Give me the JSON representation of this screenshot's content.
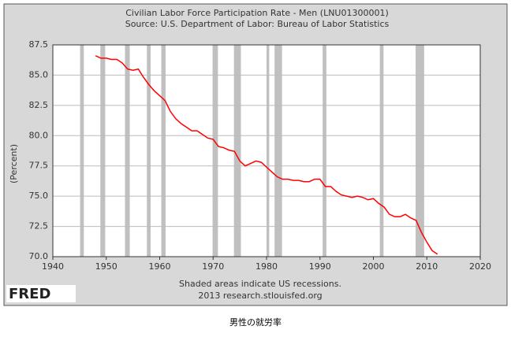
{
  "chart_data": {
    "type": "line",
    "title": "Civilian Labor Force Participation Rate - Men (LNU01300001)",
    "subtitle": "Source: U.S. Department of Labor: Bureau of Labor Statistics",
    "y_label": "(Percent)",
    "note": "Shaded areas indicate US recessions.",
    "source": "2013 research.stlouisfed.org",
    "logo": "FRED",
    "caption": "男性の就労率",
    "color": "#ff0000",
    "recession_color": "#c0c0c0",
    "grid": true,
    "x": [
      1948,
      1949,
      1950,
      1951,
      1952,
      1953,
      1954,
      1955,
      1956,
      1957,
      1958,
      1959,
      1960,
      1961,
      1962,
      1963,
      1964,
      1965,
      1966,
      1967,
      1968,
      1969,
      1970,
      1971,
      1972,
      1973,
      1974,
      1975,
      1976,
      1977,
      1978,
      1979,
      1980,
      1981,
      1982,
      1983,
      1984,
      1985,
      1986,
      1987,
      1988,
      1989,
      1990,
      1991,
      1992,
      1993,
      1994,
      1995,
      1996,
      1997,
      1998,
      1999,
      2000,
      2001,
      2002,
      2003,
      2004,
      2005,
      2006,
      2007,
      2008,
      2009,
      2010,
      2011,
      2012
    ],
    "values": [
      86.6,
      86.4,
      86.4,
      86.3,
      86.3,
      86.0,
      85.5,
      85.4,
      85.5,
      84.8,
      84.2,
      83.7,
      83.3,
      82.9,
      82.0,
      81.4,
      81.0,
      80.7,
      80.4,
      80.4,
      80.1,
      79.8,
      79.7,
      79.1,
      79.0,
      78.8,
      78.7,
      77.9,
      77.5,
      77.7,
      77.9,
      77.8,
      77.4,
      77.0,
      76.6,
      76.4,
      76.4,
      76.3,
      76.3,
      76.2,
      76.2,
      76.4,
      76.4,
      75.8,
      75.8,
      75.4,
      75.1,
      75.0,
      74.9,
      75.0,
      74.9,
      74.7,
      74.8,
      74.4,
      74.1,
      73.5,
      73.3,
      73.3,
      73.5,
      73.2,
      73.0,
      72.0,
      71.2,
      70.5,
      70.2
    ],
    "recessions": [
      [
        1945.1,
        1945.8
      ],
      [
        1948.9,
        1949.8
      ],
      [
        1953.5,
        1954.4
      ],
      [
        1957.6,
        1958.3
      ],
      [
        1960.3,
        1961.1
      ],
      [
        1969.9,
        1970.9
      ],
      [
        1973.9,
        1975.2
      ],
      [
        1980.0,
        1980.5
      ],
      [
        1981.5,
        1982.9
      ],
      [
        1990.5,
        1991.2
      ],
      [
        2001.2,
        2001.9
      ],
      [
        2007.9,
        2009.5
      ]
    ],
    "xlim": [
      1940,
      2020
    ],
    "xticks": [
      1940,
      1950,
      1960,
      1970,
      1980,
      1990,
      2000,
      2010,
      2020
    ],
    "ylim": [
      70,
      87.5
    ],
    "yticks": [
      {
        "value": 70,
        "label": "70.0"
      },
      72.5,
      {
        "value": 75,
        "label": "75.0"
      },
      77.5,
      {
        "value": 80,
        "label": "80.0"
      },
      82.5,
      {
        "value": 85,
        "label": "85.0"
      },
      87.5
    ]
  }
}
